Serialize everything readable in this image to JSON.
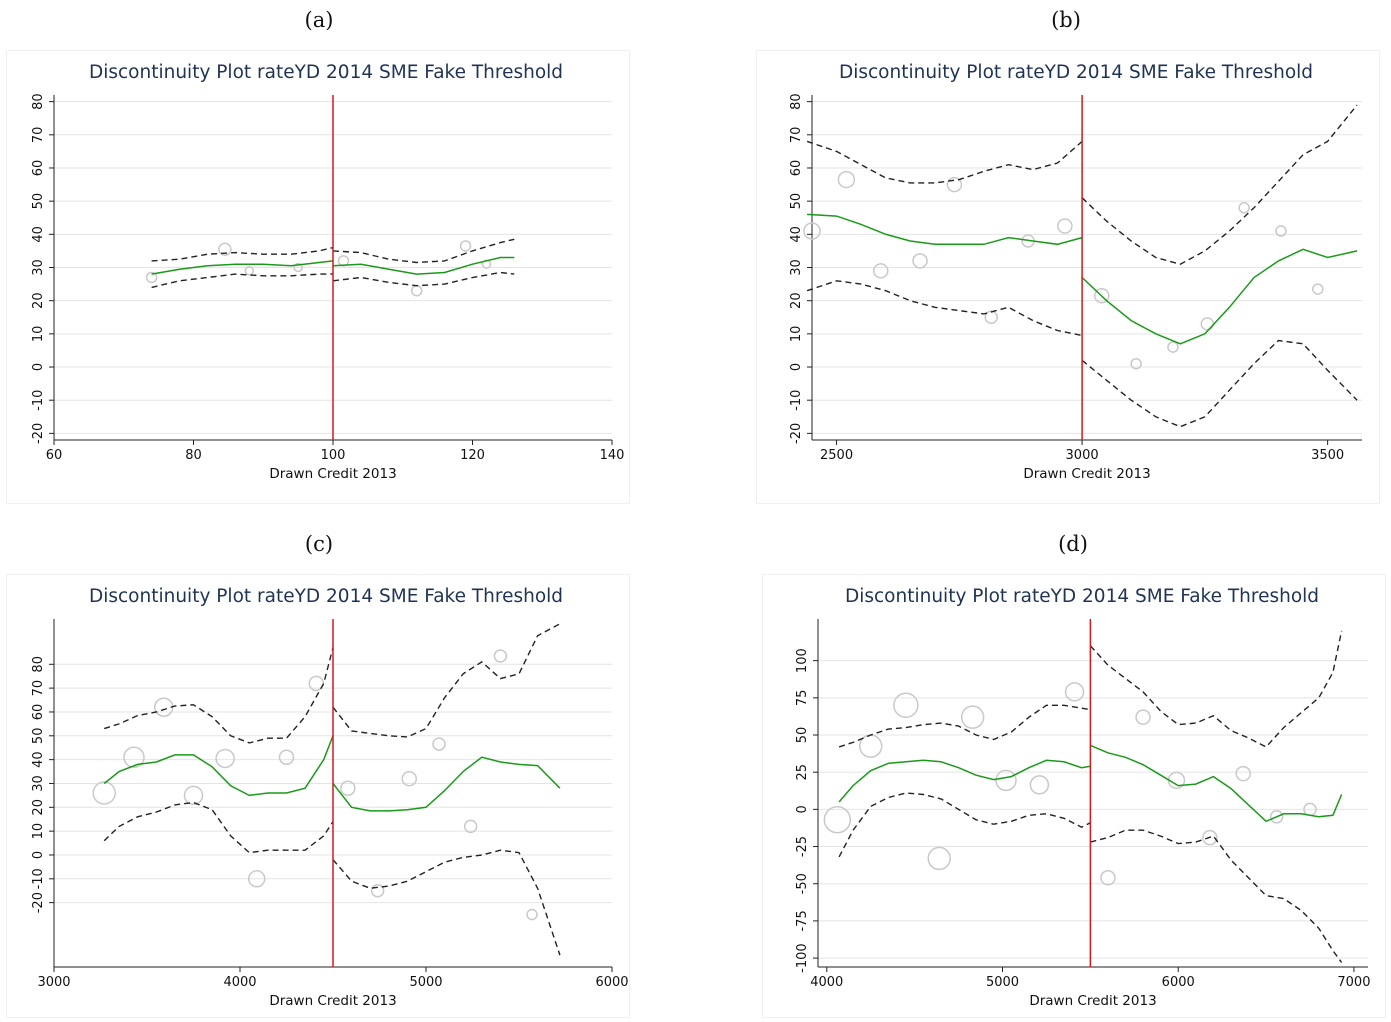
{
  "panels": [
    {
      "label": "(a)"
    },
    {
      "label": "(b)"
    },
    {
      "label": "(c)"
    },
    {
      "label": "(d)"
    }
  ],
  "colors": {
    "fit": "#1a9a1a",
    "ci": "#222222",
    "threshold": "#d41a1a",
    "scatter": "#c9c9c9",
    "title": "#1f3354",
    "grid": "#e4e4e4"
  },
  "chart_data": [
    {
      "type": "scatter",
      "panel": "(a)",
      "title": "Discontinuity Plot rateYD 2014 SME Fake Threshold",
      "xlabel": "Drawn Credit 2013",
      "ylabel": "",
      "xlim": [
        60,
        140
      ],
      "ylim": [
        -20,
        80
      ],
      "xticks": [
        60,
        80,
        100,
        120,
        140
      ],
      "yticks": [
        -20,
        -10,
        0,
        10,
        20,
        30,
        40,
        50,
        60,
        70,
        80
      ],
      "ytick_labels": [
        "-20",
        "-10",
        "0",
        "10",
        "20",
        "30",
        "40",
        "50",
        "60",
        "70",
        "80"
      ],
      "ydomain": [
        -22,
        82
      ],
      "grid": true,
      "threshold": 100,
      "scatter": [
        {
          "x": 74,
          "y": 27,
          "r": 5
        },
        {
          "x": 84.5,
          "y": 35.5,
          "r": 6
        },
        {
          "x": 88,
          "y": 29,
          "r": 4
        },
        {
          "x": 95,
          "y": 30,
          "r": 4
        },
        {
          "x": 101.5,
          "y": 32,
          "r": 5
        },
        {
          "x": 112,
          "y": 23,
          "r": 5
        },
        {
          "x": 119,
          "y": 36.5,
          "r": 5
        },
        {
          "x": 122,
          "y": 31,
          "r": 4
        }
      ],
      "segments": [
        {
          "x": [
            74,
            78,
            82,
            86,
            90,
            94,
            98,
            100
          ],
          "fit": [
            28,
            29.5,
            30.5,
            31,
            31,
            30.5,
            31.5,
            32
          ],
          "upper": [
            32,
            32.5,
            34,
            34.5,
            34,
            34,
            35,
            36
          ],
          "lower": [
            24,
            26,
            27,
            28,
            27.5,
            27.5,
            28,
            28
          ]
        },
        {
          "x": [
            100,
            104,
            108,
            112,
            116,
            120,
            124,
            126
          ],
          "fit": [
            30.5,
            31,
            29.5,
            28,
            28.5,
            31,
            33,
            33
          ],
          "upper": [
            35,
            34.5,
            32.5,
            31.5,
            32,
            35,
            37.5,
            38.5
          ],
          "lower": [
            26,
            27,
            25.5,
            24.5,
            25,
            27,
            28.5,
            28
          ]
        }
      ]
    },
    {
      "type": "scatter",
      "panel": "(b)",
      "title": "Discontinuity Plot rateYD 2014 SME Fake Threshold",
      "xlabel": "Drawn Credit 2013",
      "ylabel": "",
      "xlim": [
        2450,
        3570
      ],
      "ylim": [
        -20,
        80
      ],
      "xticks": [
        2500,
        3000,
        3500
      ],
      "yticks": [
        -20,
        -10,
        0,
        10,
        20,
        30,
        40,
        50,
        60,
        70,
        80
      ],
      "ytick_labels": [
        "-20",
        "-10",
        "0",
        "10",
        "20",
        "30",
        "40",
        "50",
        "60",
        "70",
        "80"
      ],
      "ydomain": [
        -22,
        82
      ],
      "grid": true,
      "threshold": 3000,
      "scatter": [
        {
          "x": 2450,
          "y": 41,
          "r": 8
        },
        {
          "x": 2520,
          "y": 56.5,
          "r": 8
        },
        {
          "x": 2590,
          "y": 29,
          "r": 7
        },
        {
          "x": 2670,
          "y": 32,
          "r": 7
        },
        {
          "x": 2740,
          "y": 55,
          "r": 7
        },
        {
          "x": 2815,
          "y": 15,
          "r": 6
        },
        {
          "x": 2890,
          "y": 38,
          "r": 6
        },
        {
          "x": 2965,
          "y": 42.5,
          "r": 7
        },
        {
          "x": 3040,
          "y": 21.5,
          "r": 7
        },
        {
          "x": 3110,
          "y": 1,
          "r": 5
        },
        {
          "x": 3185,
          "y": 6,
          "r": 5
        },
        {
          "x": 3255,
          "y": 13,
          "r": 6
        },
        {
          "x": 3330,
          "y": 48,
          "r": 5
        },
        {
          "x": 3405,
          "y": 41,
          "r": 5
        },
        {
          "x": 3480,
          "y": 23.5,
          "r": 5
        }
      ],
      "segments": [
        {
          "x": [
            2440,
            2500,
            2550,
            2600,
            2650,
            2700,
            2750,
            2800,
            2850,
            2900,
            2950,
            3000
          ],
          "fit": [
            46,
            45.5,
            43,
            40,
            38,
            37,
            37,
            37,
            39,
            38,
            37,
            39
          ],
          "upper": [
            68,
            65,
            61,
            57,
            55.5,
            55.5,
            56.5,
            59,
            61,
            59.5,
            61.5,
            68
          ],
          "lower": [
            23,
            26,
            25,
            23,
            20,
            18,
            17,
            16,
            18,
            14,
            11,
            9.5
          ]
        },
        {
          "x": [
            3000,
            3050,
            3100,
            3150,
            3200,
            3250,
            3300,
            3350,
            3400,
            3450,
            3500,
            3560
          ],
          "fit": [
            27,
            20,
            14,
            10,
            7,
            10,
            18,
            27,
            32,
            35.5,
            33,
            35
          ],
          "upper": [
            51,
            44,
            38,
            33,
            31,
            35,
            41,
            48,
            56,
            64,
            68,
            79
          ],
          "lower": [
            2,
            -4,
            -10,
            -15,
            -18,
            -15,
            -7,
            1,
            8,
            7,
            -1,
            -10
          ]
        }
      ]
    },
    {
      "type": "scatter",
      "panel": "(c)",
      "title": "Discontinuity Plot rateYD 2014 SME Fake Threshold",
      "xlabel": "Drawn Credit 2013",
      "ylabel": "",
      "xlim": [
        3000,
        6000
      ],
      "ylim": [
        -20,
        80
      ],
      "xticks": [
        3000,
        4000,
        5000,
        6000
      ],
      "yticks": [
        -20,
        -10,
        0,
        10,
        20,
        30,
        40,
        50,
        60,
        70,
        80
      ],
      "ytick_labels": [
        "-20",
        "-10",
        "0",
        "10",
        "20",
        "30",
        "40",
        "50",
        "60",
        "70",
        "80"
      ],
      "ydomain": [
        -47,
        99
      ],
      "grid": true,
      "threshold": 4500,
      "scatter": [
        {
          "x": 3270,
          "y": 26,
          "r": 11
        },
        {
          "x": 3430,
          "y": 41,
          "r": 10
        },
        {
          "x": 3590,
          "y": 62,
          "r": 9
        },
        {
          "x": 3750,
          "y": 25,
          "r": 9
        },
        {
          "x": 3920,
          "y": 40.5,
          "r": 9
        },
        {
          "x": 4090,
          "y": -10,
          "r": 8
        },
        {
          "x": 4250,
          "y": 41,
          "r": 7
        },
        {
          "x": 4410,
          "y": 72,
          "r": 7
        },
        {
          "x": 4580,
          "y": 28,
          "r": 7
        },
        {
          "x": 4740,
          "y": -15,
          "r": 6
        },
        {
          "x": 4910,
          "y": 32,
          "r": 7
        },
        {
          "x": 5070,
          "y": 46.5,
          "r": 6
        },
        {
          "x": 5240,
          "y": 12,
          "r": 6
        },
        {
          "x": 5400,
          "y": 83.5,
          "r": 6
        },
        {
          "x": 5570,
          "y": -25,
          "r": 5
        }
      ],
      "segments": [
        {
          "x": [
            3270,
            3350,
            3450,
            3550,
            3650,
            3750,
            3850,
            3950,
            4050,
            4150,
            4250,
            4350,
            4450,
            4500
          ],
          "fit": [
            30,
            35,
            38,
            39,
            42,
            42,
            37,
            29,
            25,
            26,
            26,
            28,
            40,
            50
          ],
          "upper": [
            53,
            55,
            58.5,
            60,
            62.5,
            63,
            58,
            50,
            47,
            49,
            49,
            58,
            72,
            87
          ],
          "lower": [
            6,
            12,
            16,
            18,
            21,
            22,
            19,
            8,
            1,
            2,
            2,
            2,
            8,
            14
          ]
        },
        {
          "x": [
            4500,
            4600,
            4700,
            4800,
            4900,
            5000,
            5100,
            5200,
            5300,
            5400,
            5500,
            5600,
            5720
          ],
          "fit": [
            30,
            20,
            18.5,
            18.5,
            19,
            20,
            27,
            35,
            41,
            39,
            38,
            37.5,
            28
          ],
          "upper": [
            62,
            52,
            51,
            50,
            49.5,
            53,
            66,
            76,
            81,
            74,
            76,
            92,
            97
          ],
          "lower": [
            -2,
            -11,
            -14,
            -13,
            -11,
            -7,
            -3,
            -1,
            0,
            2,
            1,
            -14,
            -42
          ]
        }
      ]
    },
    {
      "type": "scatter",
      "panel": "(d)",
      "title": "Discontinuity Plot rateYD 2014 SME Fake Threshold",
      "xlabel": "Drawn Credit 2013",
      "ylabel": "",
      "xlim": [
        3950,
        7080
      ],
      "ylim": [
        -100,
        100
      ],
      "xticks": [
        4000,
        5000,
        6000,
        7000
      ],
      "yticks": [
        -100,
        -75,
        -50,
        -25,
        0,
        25,
        50,
        75,
        100
      ],
      "ytick_labels": [
        "-100",
        "-75",
        "-50",
        "-25",
        "0",
        "25",
        "50",
        "75",
        "100"
      ],
      "ydomain": [
        -106,
        128
      ],
      "grid": true,
      "threshold": 5500,
      "scatter": [
        {
          "x": 4060,
          "y": -7,
          "r": 13
        },
        {
          "x": 4250,
          "y": 42.5,
          "r": 11
        },
        {
          "x": 4450,
          "y": 70,
          "r": 12
        },
        {
          "x": 4640,
          "y": -33,
          "r": 11
        },
        {
          "x": 4830,
          "y": 62,
          "r": 11
        },
        {
          "x": 5020,
          "y": 19.5,
          "r": 10
        },
        {
          "x": 5210,
          "y": 16.5,
          "r": 9
        },
        {
          "x": 5410,
          "y": 79,
          "r": 9
        },
        {
          "x": 5600,
          "y": -46,
          "r": 7
        },
        {
          "x": 5800,
          "y": 62,
          "r": 7
        },
        {
          "x": 5990,
          "y": 19.5,
          "r": 8
        },
        {
          "x": 6180,
          "y": -19,
          "r": 7
        },
        {
          "x": 6370,
          "y": 24,
          "r": 7
        },
        {
          "x": 6560,
          "y": -5,
          "r": 6
        },
        {
          "x": 6750,
          "y": 0,
          "r": 6
        }
      ],
      "segments": [
        {
          "x": [
            4070,
            4150,
            4250,
            4350,
            4450,
            4550,
            4650,
            4750,
            4850,
            4950,
            5050,
            5150,
            5250,
            5350,
            5450,
            5500
          ],
          "fit": [
            5,
            16,
            26,
            31,
            32,
            33,
            32,
            28,
            23,
            20,
            22,
            28,
            33,
            32,
            28,
            29
          ],
          "upper": [
            42,
            45,
            50,
            54,
            55,
            57,
            58,
            56,
            50,
            47,
            52,
            62,
            70,
            70,
            68,
            67
          ],
          "lower": [
            -32,
            -14,
            2,
            8,
            11,
            10,
            7,
            0,
            -7,
            -10,
            -8,
            -4,
            -3,
            -6,
            -12,
            -9
          ]
        },
        {
          "x": [
            5500,
            5600,
            5700,
            5800,
            5900,
            6000,
            6100,
            6200,
            6300,
            6400,
            6500,
            6600,
            6700,
            6800,
            6880,
            6930
          ],
          "fit": [
            43,
            38,
            35,
            30,
            23,
            16,
            17,
            22,
            14,
            3,
            -8,
            -3,
            -3,
            -5,
            -4,
            10
          ],
          "upper": [
            110,
            97,
            88,
            79,
            66,
            57,
            58,
            63,
            53,
            48,
            42,
            55,
            65,
            75,
            92,
            120
          ],
          "lower": [
            -22,
            -19,
            -14,
            -14,
            -18,
            -23,
            -22,
            -18,
            -34,
            -46,
            -58,
            -60,
            -68,
            -80,
            -95,
            -103
          ]
        }
      ]
    }
  ]
}
